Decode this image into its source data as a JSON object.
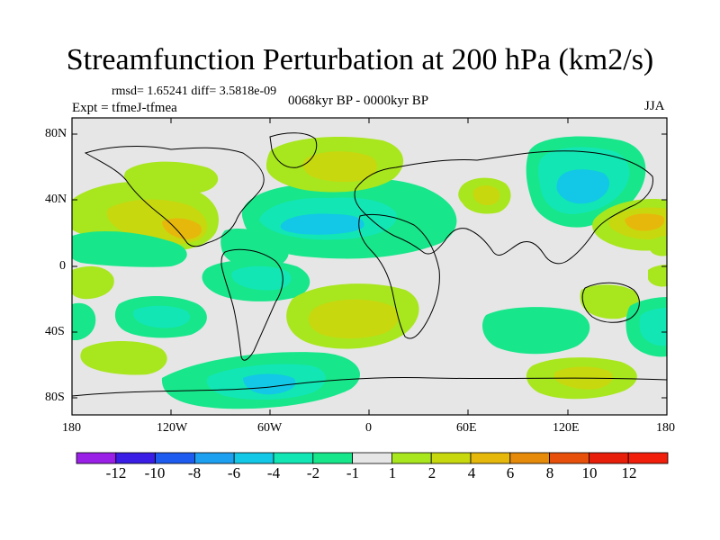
{
  "title": "Streamfunction Perturbation at 200 hPa (km2/s)",
  "stats_text": "rmsd= 1.65241 diff= 3.5818e-09",
  "experiment_text": "Expt = tfmeJ-tfmea",
  "period_text": "0068kyr BP - 0000kyr BP",
  "season_text": "JJA",
  "lat_labels": [
    "80N",
    "40N",
    "0",
    "40S",
    "80S"
  ],
  "lon_labels": [
    "180",
    "120W",
    "60W",
    "0",
    "60E",
    "120E",
    "180"
  ],
  "colorbar": {
    "labels": [
      "-12",
      "-10",
      "-8",
      "-6",
      "-4",
      "-2",
      "-1",
      "1",
      "2",
      "4",
      "6",
      "8",
      "10",
      "12"
    ],
    "colors": [
      "#9a20e8",
      "#3a1ee6",
      "#1e5cf0",
      "#1ea0f0",
      "#12c8e6",
      "#12e6b4",
      "#18e68a",
      "#e6e6e6",
      "#a8e61e",
      "#c8d80e",
      "#e6b80c",
      "#e68a0a",
      "#e6500a",
      "#e61e0a",
      "#f01e0a"
    ]
  },
  "contour_colors": {
    "neutral": "#e6e6e6",
    "pos_1_2": "#a8e61e",
    "pos_2_4": "#c8d80e",
    "pos_4_6": "#e6b80c",
    "neg_1_2": "#18e68a",
    "neg_2_4": "#12e6b4",
    "neg_4_6": "#12c8e6"
  }
}
